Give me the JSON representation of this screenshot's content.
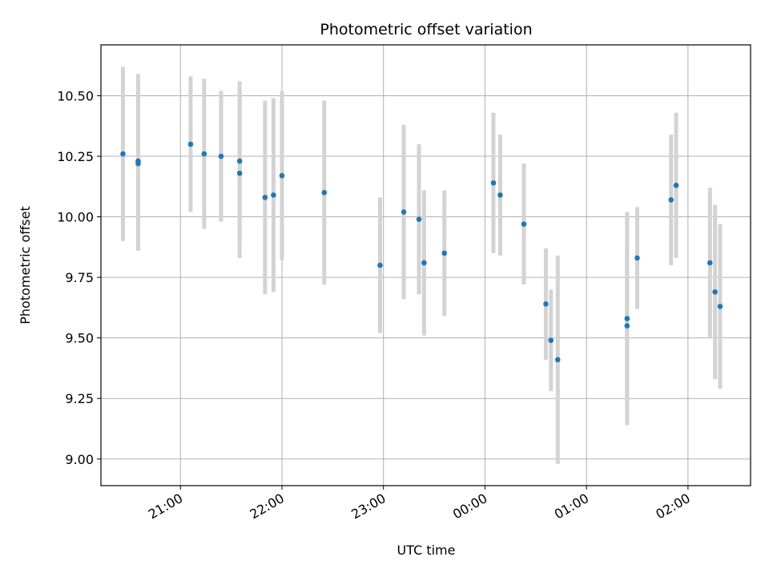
{
  "chart_data": {
    "type": "scatter",
    "title": "Photometric offset variation",
    "xlabel": "UTC time",
    "ylabel": "Photometric offset",
    "grid": true,
    "xlim": [
      "20:13",
      "02:37"
    ],
    "ylim": [
      8.89,
      10.71
    ],
    "x_ticks": [
      "21:00",
      "22:00",
      "23:00",
      "00:00",
      "01:00",
      "02:00"
    ],
    "y_ticks": [
      "9.00",
      "9.25",
      "9.50",
      "9.75",
      "10.00",
      "10.25",
      "10.50"
    ],
    "colors": {
      "points": "#1f77b4",
      "errorbars": "#d3d3d3",
      "grid": "#b0b0b0"
    },
    "series": [
      {
        "points": [
          {
            "x": "20:26",
            "y": 10.26,
            "err": 0.36
          },
          {
            "x": "20:35",
            "y": 10.23,
            "err": 0.36
          },
          {
            "x": "20:35",
            "y": 10.22,
            "err": 0.36
          },
          {
            "x": "21:06",
            "y": 10.3,
            "err": 0.28
          },
          {
            "x": "21:14",
            "y": 10.26,
            "err": 0.31
          },
          {
            "x": "21:24",
            "y": 10.25,
            "err": 0.27
          },
          {
            "x": "21:35",
            "y": 10.23,
            "err": 0.33
          },
          {
            "x": "21:35",
            "y": 10.18,
            "err": 0.35
          },
          {
            "x": "21:50",
            "y": 10.08,
            "err": 0.4
          },
          {
            "x": "21:55",
            "y": 10.09,
            "err": 0.4
          },
          {
            "x": "22:00",
            "y": 10.17,
            "err": 0.35
          },
          {
            "x": "22:25",
            "y": 10.1,
            "err": 0.38
          },
          {
            "x": "22:58",
            "y": 9.8,
            "err": 0.28
          },
          {
            "x": "23:12",
            "y": 10.02,
            "err": 0.36
          },
          {
            "x": "23:21",
            "y": 9.99,
            "err": 0.31
          },
          {
            "x": "23:24",
            "y": 9.81,
            "err": 0.3
          },
          {
            "x": "23:36",
            "y": 9.85,
            "err": 0.26
          },
          {
            "x": "00:05",
            "y": 10.14,
            "err": 0.29
          },
          {
            "x": "00:09",
            "y": 10.09,
            "err": 0.25
          },
          {
            "x": "00:23",
            "y": 9.97,
            "err": 0.25
          },
          {
            "x": "00:36",
            "y": 9.64,
            "err": 0.23
          },
          {
            "x": "00:39",
            "y": 9.49,
            "err": 0.21
          },
          {
            "x": "00:43",
            "y": 9.41,
            "err": 0.43
          },
          {
            "x": "01:24",
            "y": 9.58,
            "err": 0.44
          },
          {
            "x": "01:24",
            "y": 9.55,
            "err": 0.33
          },
          {
            "x": "01:30",
            "y": 9.83,
            "err": 0.21
          },
          {
            "x": "01:50",
            "y": 10.07,
            "err": 0.27
          },
          {
            "x": "01:53",
            "y": 10.13,
            "err": 0.3
          },
          {
            "x": "02:13",
            "y": 9.81,
            "err": 0.31
          },
          {
            "x": "02:16",
            "y": 9.69,
            "err": 0.36
          },
          {
            "x": "02:19",
            "y": 9.63,
            "err": 0.34
          }
        ]
      }
    ]
  }
}
